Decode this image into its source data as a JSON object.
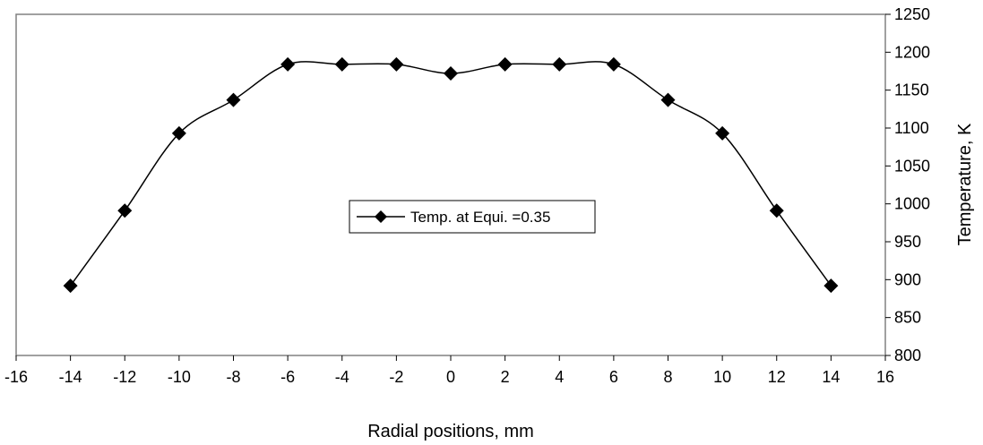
{
  "chart_data": {
    "type": "line",
    "title": "",
    "xlabel": "Radial positions, mm",
    "ylabel": "Temperature, K",
    "xlim": [
      -16,
      16
    ],
    "ylim": [
      800,
      1250
    ],
    "x_ticks": [
      -16,
      -14,
      -12,
      -10,
      -8,
      -6,
      -4,
      -2,
      0,
      2,
      4,
      6,
      8,
      10,
      12,
      14,
      16
    ],
    "y_ticks": [
      800,
      850,
      900,
      950,
      1000,
      1050,
      1100,
      1150,
      1200,
      1250
    ],
    "y_axis_side": "right",
    "grid": false,
    "smooth": true,
    "marker": "diamond",
    "legend_position": "center",
    "series": [
      {
        "name": "Temp. at Equi. =0.35",
        "color": "#000000",
        "x": [
          -14,
          -12,
          -10,
          -8,
          -6,
          -4,
          -2,
          0,
          2,
          4,
          6,
          8,
          10,
          12,
          14
        ],
        "y": [
          892,
          991,
          1093,
          1137,
          1184,
          1184,
          1184,
          1172,
          1184,
          1184,
          1184,
          1137,
          1093,
          991,
          892
        ]
      }
    ]
  }
}
